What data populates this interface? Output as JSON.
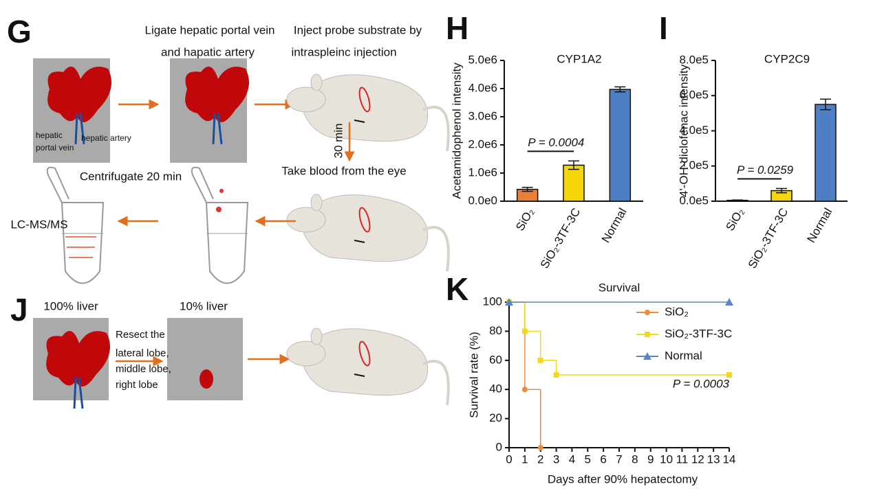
{
  "chart_data": [
    {
      "type": "bar",
      "panel": "H",
      "title": "CYP1A2",
      "y_label": "Acetamidophenol intensity",
      "categories": [
        "SiO₂",
        "SiO₂-3TF-3C",
        "Normal"
      ],
      "values": [
        420000,
        1280000,
        3970000
      ],
      "errors": [
        70000,
        150000,
        90000
      ],
      "colors": [
        "#e8803a",
        "#f5d60a",
        "#4f7fc3"
      ],
      "ylim": [
        0,
        5000000
      ],
      "yticks": [
        {
          "value": 0,
          "label": "0.0e0"
        },
        {
          "value": 1000000,
          "label": "1.0e6"
        },
        {
          "value": 2000000,
          "label": "2.0e6"
        },
        {
          "value": 3000000,
          "label": "3.0e6"
        },
        {
          "value": 4000000,
          "label": "4.0e6"
        },
        {
          "value": 5000000,
          "label": "5.0e6"
        }
      ],
      "annotation": "P = 0.0004"
    },
    {
      "type": "bar",
      "panel": "I",
      "title": "CYP2C9",
      "y_label": "4'-OH-diclofenac intensity",
      "categories": [
        "SiO₂",
        "SiO₂-3TF-3C",
        "Normal"
      ],
      "values": [
        5000,
        60000,
        550000
      ],
      "errors": [
        2000,
        12000,
        30000
      ],
      "colors": [
        "#e8803a",
        "#f5d60a",
        "#4f7fc3"
      ],
      "ylim": [
        0,
        800000
      ],
      "yticks": [
        {
          "value": 0,
          "label": "0.0e5"
        },
        {
          "value": 200000,
          "label": "2.0e5"
        },
        {
          "value": 400000,
          "label": "4.0e5"
        },
        {
          "value": 600000,
          "label": "6.0e5"
        },
        {
          "value": 800000,
          "label": "8.0e5"
        }
      ],
      "annotation": "P = 0.0259"
    },
    {
      "type": "step",
      "panel": "K",
      "title": "Survival",
      "x_label": "Days after 90% hepatectomy",
      "y_label": "Survival rate (%)",
      "series": [
        {
          "name": "SiO₂",
          "color": "#ee8a3c",
          "marker": "circle",
          "x": [
            0,
            1,
            2
          ],
          "values": [
            100,
            40,
            0
          ]
        },
        {
          "name": "SiO₂-3TF-3C",
          "color": "#f2d81c",
          "marker": "square",
          "x": [
            0,
            1,
            2,
            3,
            14
          ],
          "values": [
            100,
            80,
            60,
            50,
            50
          ]
        },
        {
          "name": "Normal",
          "color": "#5b86c6",
          "marker": "triangle",
          "x": [
            0,
            14
          ],
          "values": [
            100,
            100
          ]
        }
      ],
      "xlim": [
        0,
        14
      ],
      "xticks": [
        0,
        1,
        2,
        3,
        4,
        5,
        6,
        7,
        8,
        9,
        10,
        11,
        12,
        13,
        14
      ],
      "ylim": [
        0,
        100
      ],
      "yticks": [
        0,
        20,
        40,
        60,
        80,
        100
      ],
      "annotation": "P = 0.0003"
    }
  ],
  "diagrams": {
    "g": {
      "panel": "G",
      "step_1": [
        "Ligate hepatic portal vein",
        "and hapatic artery"
      ],
      "step_2": [
        "Inject probe substrate by",
        "intraspleinc injection"
      ],
      "wait": "30 min",
      "step_3": "Take blood from the eye",
      "step_4": "Centrifugate 20 min",
      "step_5": "LC-MS/MS",
      "vessel_labels": [
        "hepatic",
        "portal vein",
        "hepatic artery"
      ]
    },
    "j": {
      "panel": "J",
      "before": "100% liver",
      "after": "10% liver",
      "procedure": [
        "Resect the",
        "lateral lobe,",
        "middle lobe,",
        "right lobe"
      ]
    }
  }
}
